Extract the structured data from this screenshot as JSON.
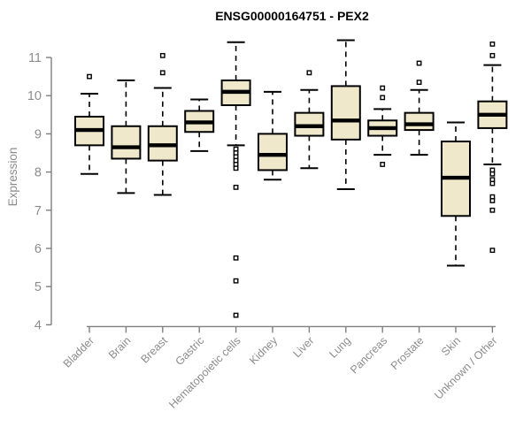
{
  "title": "ENSG00000164751 - PEX2",
  "chart_data": {
    "type": "boxplot",
    "title": "ENSG00000164751 - PEX2",
    "ylabel": "Expression",
    "ylim": [
      4,
      11.6
    ],
    "yticks": [
      4,
      5,
      6,
      7,
      8,
      9,
      10,
      11
    ],
    "grid": false,
    "legend": "none",
    "categories": [
      "Bladder",
      "Brain",
      "Breast",
      "Gastric",
      "Hematopoietic cells",
      "Kidney",
      "Liver",
      "Lung",
      "Pancreas",
      "Prostate",
      "Skin",
      "Unknown / Other"
    ],
    "series": [
      {
        "name": "Bladder",
        "low": 7.95,
        "q1": 8.7,
        "median": 9.1,
        "q3": 9.45,
        "high": 10.05,
        "outliers": [
          10.5
        ]
      },
      {
        "name": "Brain",
        "low": 7.45,
        "q1": 8.35,
        "median": 8.65,
        "q3": 9.2,
        "high": 10.4,
        "outliers": []
      },
      {
        "name": "Breast",
        "low": 7.4,
        "q1": 8.3,
        "median": 8.7,
        "q3": 9.2,
        "high": 10.2,
        "outliers": [
          10.6,
          11.05
        ]
      },
      {
        "name": "Gastric",
        "low": 8.55,
        "q1": 9.05,
        "median": 9.3,
        "q3": 9.6,
        "high": 9.9,
        "outliers": []
      },
      {
        "name": "Hematopoietic cells",
        "low": 8.7,
        "q1": 9.75,
        "median": 10.1,
        "q3": 10.4,
        "high": 11.4,
        "outliers": [
          8.6,
          8.5,
          8.4,
          8.3,
          8.2,
          8.1,
          7.6,
          5.75,
          5.15,
          4.25
        ]
      },
      {
        "name": "Kidney",
        "low": 7.8,
        "q1": 8.05,
        "median": 8.45,
        "q3": 9.0,
        "high": 10.1,
        "outliers": []
      },
      {
        "name": "Liver",
        "low": 8.1,
        "q1": 8.95,
        "median": 9.2,
        "q3": 9.55,
        "high": 10.15,
        "outliers": [
          10.6
        ]
      },
      {
        "name": "Lung",
        "low": 7.55,
        "q1": 8.85,
        "median": 9.35,
        "q3": 10.25,
        "high": 11.45,
        "outliers": []
      },
      {
        "name": "Pancreas",
        "low": 8.45,
        "q1": 8.95,
        "median": 9.15,
        "q3": 9.35,
        "high": 9.65,
        "outliers": [
          10.2,
          9.95,
          8.2
        ]
      },
      {
        "name": "Prostate",
        "low": 8.45,
        "q1": 9.1,
        "median": 9.25,
        "q3": 9.55,
        "high": 10.15,
        "outliers": [
          10.85,
          10.35
        ]
      },
      {
        "name": "Skin",
        "low": 5.55,
        "q1": 6.85,
        "median": 7.85,
        "q3": 8.8,
        "high": 9.3,
        "outliers": []
      },
      {
        "name": "Unknown / Other",
        "low": 8.2,
        "q1": 9.15,
        "median": 9.5,
        "q3": 9.85,
        "high": 10.8,
        "outliers": [
          11.35,
          11.05,
          8.05,
          7.95,
          7.8,
          7.7,
          7.35,
          7.25,
          7.0,
          5.95
        ]
      }
    ],
    "colors": {
      "box_fill": "#EFE8CA",
      "box_border": "#000000",
      "median": "#000000",
      "whisker": "#000000",
      "outlier_stroke": "#000000",
      "axis": "#7F7F7F",
      "tick_label": "#8C8C8C",
      "title": "#000000",
      "background": "#FFFFFF"
    }
  }
}
